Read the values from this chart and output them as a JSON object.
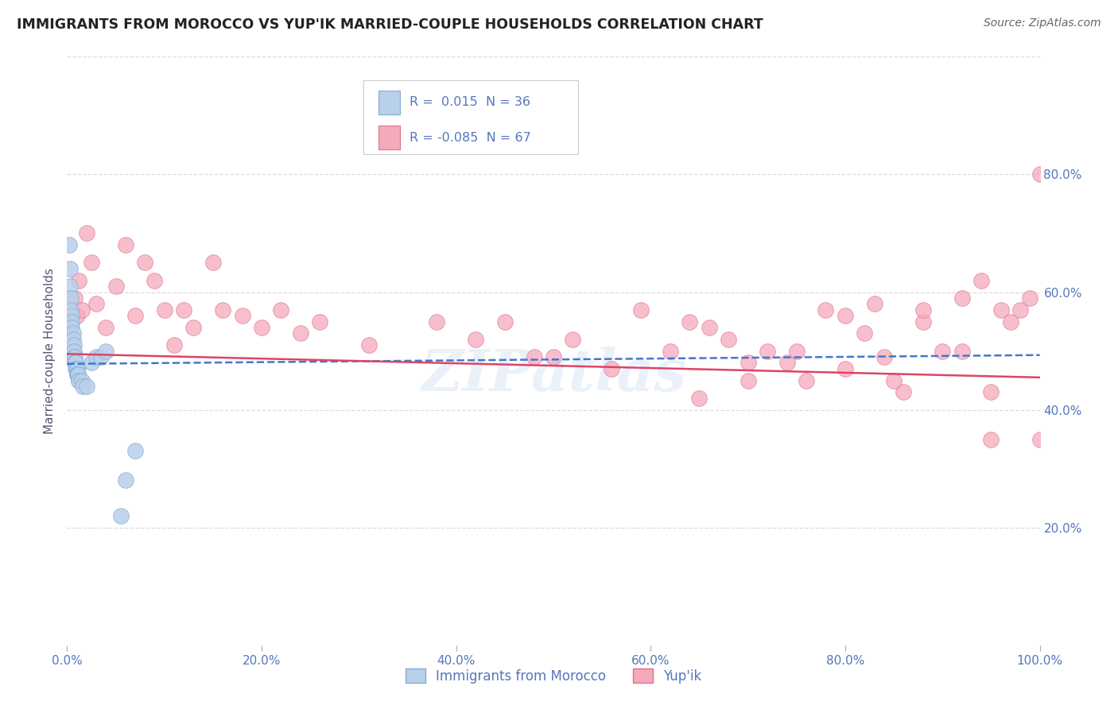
{
  "title": "IMMIGRANTS FROM MOROCCO VS YUP'IK MARRIED-COUPLE HOUSEHOLDS CORRELATION CHART",
  "source": "Source: ZipAtlas.com",
  "ylabel": "Married-couple Households",
  "legend_label_1": "Immigrants from Morocco",
  "legend_label_2": "Yup'ik",
  "r1": 0.015,
  "n1": 36,
  "r2": -0.085,
  "n2": 67,
  "background_color": "#ffffff",
  "grid_color": "#dddddd",
  "title_color": "#222222",
  "source_color": "#666666",
  "tick_color": "#5577bb",
  "scatter1_color": "#b8d0ea",
  "scatter1_edge": "#88aad4",
  "scatter2_color": "#f5aabb",
  "scatter2_edge": "#e07090",
  "line1_color": "#4477cc",
  "line2_color": "#dd4466",
  "watermark": "ZIPatlas",
  "xlim": [
    0.0,
    1.0
  ],
  "ylim": [
    0.0,
    1.0
  ],
  "x_ticks": [
    0.0,
    0.2,
    0.4,
    0.6,
    0.8,
    1.0
  ],
  "x_tick_labels": [
    "0.0%",
    "20.0%",
    "40.0%",
    "60.0%",
    "80.0%",
    "100.0%"
  ],
  "y_ticks": [
    0.2,
    0.4,
    0.6,
    0.8
  ],
  "y_tick_labels": [
    "20.0%",
    "40.0%",
    "60.0%",
    "80.0%"
  ],
  "morocco_x": [
    0.002,
    0.003,
    0.003,
    0.004,
    0.004,
    0.005,
    0.005,
    0.005,
    0.006,
    0.006,
    0.007,
    0.007,
    0.007,
    0.008,
    0.008,
    0.008,
    0.009,
    0.009,
    0.01,
    0.01,
    0.01,
    0.01,
    0.011,
    0.011,
    0.012,
    0.012,
    0.015,
    0.016,
    0.02,
    0.025,
    0.03,
    0.035,
    0.04,
    0.055,
    0.06,
    0.07
  ],
  "morocco_y": [
    0.68,
    0.64,
    0.61,
    0.59,
    0.57,
    0.56,
    0.55,
    0.54,
    0.53,
    0.52,
    0.51,
    0.5,
    0.49,
    0.49,
    0.48,
    0.48,
    0.48,
    0.47,
    0.47,
    0.47,
    0.46,
    0.46,
    0.46,
    0.46,
    0.45,
    0.45,
    0.45,
    0.44,
    0.44,
    0.48,
    0.49,
    0.49,
    0.5,
    0.22,
    0.28,
    0.33
  ],
  "yupik_x": [
    0.005,
    0.008,
    0.01,
    0.012,
    0.015,
    0.02,
    0.025,
    0.03,
    0.04,
    0.05,
    0.06,
    0.07,
    0.08,
    0.09,
    0.1,
    0.11,
    0.12,
    0.13,
    0.15,
    0.16,
    0.18,
    0.2,
    0.22,
    0.24,
    0.26,
    0.31,
    0.38,
    0.42,
    0.45,
    0.48,
    0.5,
    0.52,
    0.56,
    0.59,
    0.62,
    0.64,
    0.66,
    0.68,
    0.7,
    0.72,
    0.74,
    0.76,
    0.78,
    0.8,
    0.82,
    0.84,
    0.86,
    0.88,
    0.9,
    0.92,
    0.94,
    0.95,
    0.96,
    0.97,
    0.98,
    0.99,
    1.0,
    1.0,
    0.65,
    0.7,
    0.75,
    0.8,
    0.83,
    0.85,
    0.88,
    0.92,
    0.95
  ],
  "yupik_y": [
    0.55,
    0.59,
    0.56,
    0.62,
    0.57,
    0.7,
    0.65,
    0.58,
    0.54,
    0.61,
    0.68,
    0.56,
    0.65,
    0.62,
    0.57,
    0.51,
    0.57,
    0.54,
    0.65,
    0.57,
    0.56,
    0.54,
    0.57,
    0.53,
    0.55,
    0.51,
    0.55,
    0.52,
    0.55,
    0.49,
    0.49,
    0.52,
    0.47,
    0.57,
    0.5,
    0.55,
    0.54,
    0.52,
    0.45,
    0.5,
    0.48,
    0.45,
    0.57,
    0.56,
    0.53,
    0.49,
    0.43,
    0.55,
    0.5,
    0.59,
    0.62,
    0.43,
    0.57,
    0.55,
    0.57,
    0.59,
    0.8,
    0.35,
    0.42,
    0.48,
    0.5,
    0.47,
    0.58,
    0.45,
    0.57,
    0.5,
    0.35
  ]
}
